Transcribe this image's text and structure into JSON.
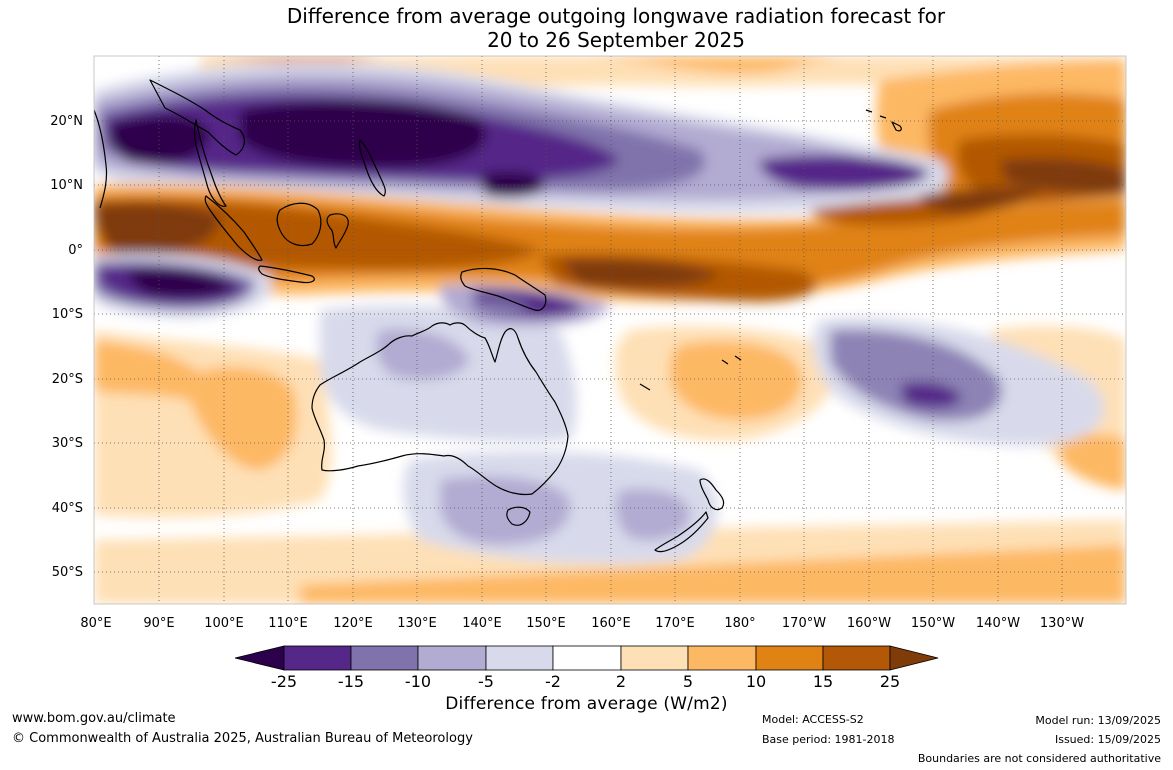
{
  "title_line1": "Difference from average outgoing longwave radiation forecast for",
  "title_line2": "20 to 26 September 2025",
  "lat_labels": [
    "20°N",
    "10°N",
    "0°",
    "10°S",
    "20°S",
    "30°S",
    "40°S",
    "50°S"
  ],
  "lon_labels": [
    "80°E",
    "90°E",
    "100°E",
    "110°E",
    "120°E",
    "130°E",
    "140°E",
    "150°E",
    "160°E",
    "170°E",
    "180°",
    "170°W",
    "160°W",
    "150°W",
    "140°W",
    "130°W"
  ],
  "colorbar": {
    "ticks": [
      "-25",
      "-15",
      "-10",
      "-5",
      "-2",
      "2",
      "5",
      "10",
      "15",
      "25"
    ],
    "colors": [
      "#2d004b",
      "#542788",
      "#8073ac",
      "#b2abd2",
      "#d8daeb",
      "#ffffff",
      "#fee0b6",
      "#fdb863",
      "#e08214",
      "#b35806",
      "#7f3b08"
    ],
    "title": "Difference from average (W/m2)"
  },
  "footer": {
    "url": "www.bom.gov.au/climate",
    "copyright": "© Commonwealth of Australia 2025, Australian Bureau of Meteorology",
    "model": "Model: ACCESS-S2",
    "base_period": "Base period: 1981-2018",
    "model_run": "Model run: 13/09/2025",
    "issued": "Issued: 15/09/2025",
    "disclaimer": "Boundaries are not considered authoritative"
  }
}
